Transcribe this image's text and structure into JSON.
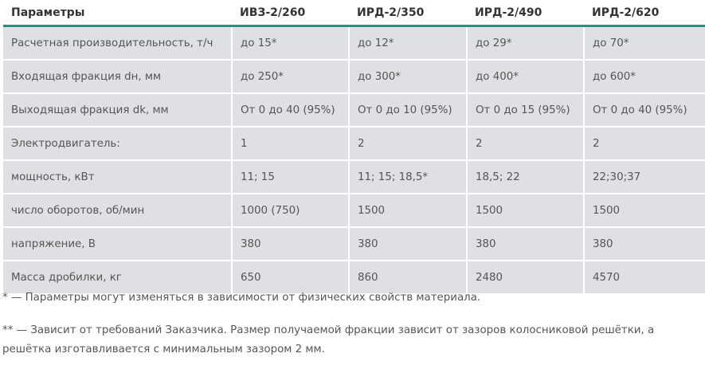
{
  "table": {
    "headers": [
      "Параметры",
      "ИВЗ-2/260",
      "ИРД-2/350",
      "ИРД-2/490",
      "ИРД-2/620"
    ],
    "rows": [
      [
        "Расчетная производительность, т/ч",
        "до 15*",
        "до 12*",
        "до 29*",
        "до 70*"
      ],
      [
        "Входящая фракция dн, мм",
        "до 250*",
        "до 300*",
        "до 400*",
        "до 600*"
      ],
      [
        "Выходящая фракция dk, мм",
        "От 0 до 40 (95%)",
        "От 0 до 10 (95%)",
        "От 0 до 15 (95%)",
        "От 0 до 40 (95%)"
      ],
      [
        "Электродвигатель:",
        "1",
        "2",
        "2",
        "2"
      ],
      [
        "мощность, кВт",
        "11; 15",
        "11; 15; 18,5*",
        "18,5; 22",
        "22;30;37"
      ],
      [
        "число оборотов, об/мин",
        "1000 (750)",
        "1500",
        "1500",
        "1500"
      ],
      [
        "напряжение, В",
        "380",
        "380",
        "380",
        "380"
      ],
      [
        "Масса дробилки, кг",
        "650",
        "860",
        "2480",
        "4570"
      ]
    ]
  },
  "notes": [
    "* — Параметры могут изменяться в зависимости от физических свойств материала.",
    "** — Зависит от требований Заказчика. Размер получаемой фракции зависит от зазоров колосниковой решётки, а решётка изготавливается с минимальным зазором 2 мм."
  ],
  "colors": {
    "accent": "#119a7e",
    "row_bg": "#dfe0e3"
  }
}
